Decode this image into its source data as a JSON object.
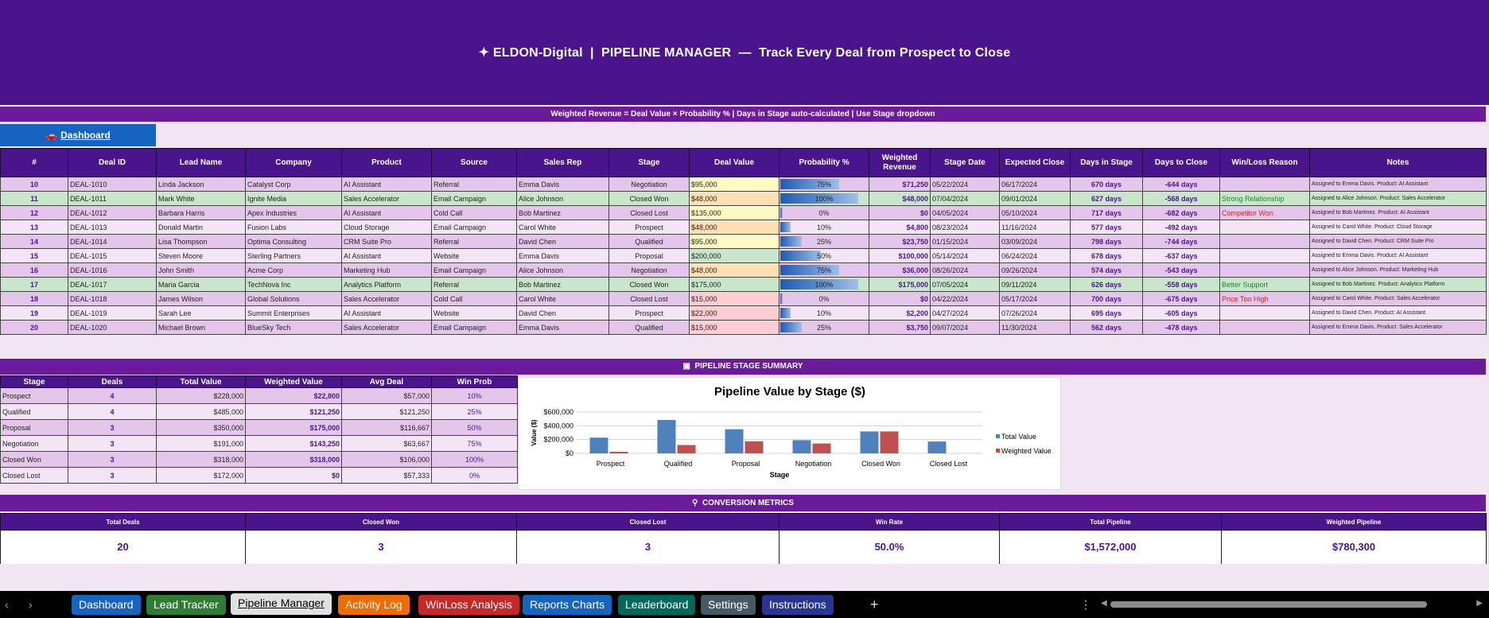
{
  "title": {
    "icon": "✦",
    "text": "ELDON-Digital  |  PIPELINE MANAGER  —  Track Every Deal from Prospect to Close"
  },
  "formula_note": "Weighted Revenue = Deal Value × Probability % | Days in Stage auto-calculated | Use Stage dropdown",
  "dashboard_link": {
    "icon": "car-icon",
    "glyph": "🚗",
    "label": "Dashboard"
  },
  "deals_table": {
    "headers": [
      "#",
      "Deal ID",
      "Lead Name",
      "Company",
      "Product",
      "Source",
      "Sales Rep",
      "Stage",
      "Deal Value",
      "Probability %",
      "Weighted Revenue",
      "Stage Date",
      "Expected Close",
      "Days in Stage",
      "Days to Close",
      "Win/Loss Reason",
      "Notes"
    ],
    "rows": [
      {
        "num": "10",
        "id": "DEAL-1010",
        "lead": "Linda Jackson",
        "company": "Catalyst Corp",
        "product": "AI Assistant",
        "source": "Referral",
        "rep": "Emma Davis",
        "stage": "Negotiation",
        "value": "$95,000",
        "prob": "75%",
        "prob_fraction": 0.75,
        "wrev": "$71,250",
        "stage_date": "05/22/2024",
        "close": "06/17/2024",
        "days": "670 days",
        "dtc": "-644 days",
        "reason": "",
        "notes": "Assigned to Emma Davis. Product: AI Assistant",
        "value_color": "#fff9c4"
      },
      {
        "num": "11",
        "id": "DEAL-1011",
        "lead": "Mark White",
        "company": "Ignite Media",
        "product": "Sales Accelerator",
        "source": "Email Campaign",
        "rep": "Alice Johnson",
        "stage": "Closed Won",
        "value": "$48,000",
        "prob": "100%",
        "prob_fraction": 1.0,
        "wrev": "$48,000",
        "stage_date": "07/04/2024",
        "close": "09/01/2024",
        "days": "627 days",
        "dtc": "-568 days",
        "reason": "Strong Relationship",
        "notes": "Assigned to Alice Johnson. Product: Sales Accelerator",
        "value_color": "#ffe0b2"
      },
      {
        "num": "12",
        "id": "DEAL-1012",
        "lead": "Barbara Harris",
        "company": "Apex Industries",
        "product": "AI Assistant",
        "source": "Cold Call",
        "rep": "Bob Martinez",
        "stage": "Closed Lost",
        "value": "$135,000",
        "prob": "0%",
        "prob_fraction": 0.0,
        "wrev": "$0",
        "stage_date": "04/05/2024",
        "close": "05/10/2024",
        "days": "717 days",
        "dtc": "-682 days",
        "reason": "Competitor Won",
        "notes": "Assigned to Bob Martinez. Product: AI Assistant",
        "value_color": "#fff9c4"
      },
      {
        "num": "13",
        "id": "DEAL-1013",
        "lead": "Donald Martin",
        "company": "Fusion Labs",
        "product": "Cloud Storage",
        "source": "Email Campaign",
        "rep": "Carol White",
        "stage": "Prospect",
        "value": "$48,000",
        "prob": "10%",
        "prob_fraction": 0.1,
        "wrev": "$4,800",
        "stage_date": "08/23/2024",
        "close": "11/16/2024",
        "days": "577 days",
        "dtc": "-492 days",
        "reason": "",
        "notes": "Assigned to Carol White. Product: Cloud Storage",
        "value_color": "#ffe0b2"
      },
      {
        "num": "14",
        "id": "DEAL-1014",
        "lead": "Lisa Thompson",
        "company": "Optima Consulting",
        "product": "CRM Suite Pro",
        "source": "Referral",
        "rep": "David Chen",
        "stage": "Qualified",
        "value": "$95,000",
        "prob": "25%",
        "prob_fraction": 0.25,
        "wrev": "$23,750",
        "stage_date": "01/15/2024",
        "close": "03/09/2024",
        "days": "798 days",
        "dtc": "-744 days",
        "reason": "",
        "notes": "Assigned to David Chen. Product: CRM Suite Pro",
        "value_color": "#fff9c4"
      },
      {
        "num": "15",
        "id": "DEAL-1015",
        "lead": "Steven Moore",
        "company": "Sterling Partners",
        "product": "AI Assistant",
        "source": "Website",
        "rep": "Emma Davis",
        "stage": "Proposal",
        "value": "$200,000",
        "prob": "50%",
        "prob_fraction": 0.5,
        "wrev": "$100,000",
        "stage_date": "05/14/2024",
        "close": "06/24/2024",
        "days": "678 days",
        "dtc": "-637 days",
        "reason": "",
        "notes": "Assigned to Emma Davis. Product: AI Assistant",
        "value_color": "#c8e6c9"
      },
      {
        "num": "16",
        "id": "DEAL-1016",
        "lead": "John Smith",
        "company": "Acme Corp",
        "product": "Marketing Hub",
        "source": "Email Campaign",
        "rep": "Alice Johnson",
        "stage": "Negotiation",
        "value": "$48,000",
        "prob": "75%",
        "prob_fraction": 0.75,
        "wrev": "$36,000",
        "stage_date": "08/26/2024",
        "close": "09/26/2024",
        "days": "574 days",
        "dtc": "-543 days",
        "reason": "",
        "notes": "Assigned to Alice Johnson. Product: Marketing Hub",
        "value_color": "#ffe0b2"
      },
      {
        "num": "17",
        "id": "DEAL-1017",
        "lead": "Maria Garcia",
        "company": "TechNova Inc",
        "product": "Analytics Platform",
        "source": "Referral",
        "rep": "Bob Martinez",
        "stage": "Closed Won",
        "value": "$175,000",
        "prob": "100%",
        "prob_fraction": 1.0,
        "wrev": "$175,000",
        "stage_date": "07/05/2024",
        "close": "09/11/2024",
        "days": "626 days",
        "dtc": "-558 days",
        "reason": "Better Support",
        "notes": "Assigned to Bob Martinez. Product: Analytics Platform",
        "value_color": "#c8e6c9"
      },
      {
        "num": "18",
        "id": "DEAL-1018",
        "lead": "James Wilson",
        "company": "Global Solutions",
        "product": "Sales Accelerator",
        "source": "Cold Call",
        "rep": "Carol White",
        "stage": "Closed Lost",
        "value": "$15,000",
        "prob": "0%",
        "prob_fraction": 0.0,
        "wrev": "$0",
        "stage_date": "04/22/2024",
        "close": "05/17/2024",
        "days": "700 days",
        "dtc": "-675 days",
        "reason": "Price Too High",
        "notes": "Assigned to Carol White. Product: Sales Accelerator",
        "value_color": "#ffcdd2"
      },
      {
        "num": "19",
        "id": "DEAL-1019",
        "lead": "Sarah Lee",
        "company": "Summit Enterprises",
        "product": "AI Assistant",
        "source": "Website",
        "rep": "David Chen",
        "stage": "Prospect",
        "value": "$22,000",
        "prob": "10%",
        "prob_fraction": 0.1,
        "wrev": "$2,200",
        "stage_date": "04/27/2024",
        "close": "07/26/2024",
        "days": "695 days",
        "dtc": "-605 days",
        "reason": "",
        "notes": "Assigned to David Chen. Product: AI Assistant",
        "value_color": "#ffcdd2"
      },
      {
        "num": "20",
        "id": "DEAL-1020",
        "lead": "Michael Brown",
        "company": "BlueSky Tech",
        "product": "Sales Accelerator",
        "source": "Email Campaign",
        "rep": "Emma Davis",
        "stage": "Qualified",
        "value": "$15,000",
        "prob": "25%",
        "prob_fraction": 0.25,
        "wrev": "$3,750",
        "stage_date": "09/07/2024",
        "close": "11/30/2024",
        "days": "562 days",
        "dtc": "-478 days",
        "reason": "",
        "notes": "Assigned to Emma Davis. Product: Sales Accelerator",
        "value_color": "#ffcdd2"
      }
    ]
  },
  "summary_banner": {
    "icon": "chart-icon",
    "glyph": "▣",
    "label": "PIPELINE STAGE SUMMARY"
  },
  "stage_table": {
    "headers": [
      "Stage",
      "Deals",
      "Total Value",
      "Weighted Value",
      "Avg Deal",
      "Win Prob"
    ],
    "rows": [
      {
        "stage": "Prospect",
        "deals": "4",
        "total": "$228,000",
        "weighted": "$22,800",
        "avg": "$57,000",
        "prob": "10%"
      },
      {
        "stage": "Qualified",
        "deals": "4",
        "total": "$485,000",
        "weighted": "$121,250",
        "avg": "$121,250",
        "prob": "25%"
      },
      {
        "stage": "Proposal",
        "deals": "3",
        "total": "$350,000",
        "weighted": "$175,000",
        "avg": "$116,667",
        "prob": "50%"
      },
      {
        "stage": "Negotiation",
        "deals": "3",
        "total": "$191,000",
        "weighted": "$143,250",
        "avg": "$63,667",
        "prob": "75%"
      },
      {
        "stage": "Closed Won",
        "deals": "3",
        "total": "$318,000",
        "weighted": "$318,000",
        "avg": "$106,000",
        "prob": "100%"
      },
      {
        "stage": "Closed Lost",
        "deals": "3",
        "total": "$172,000",
        "weighted": "$0",
        "avg": "$57,333",
        "prob": "0%"
      }
    ]
  },
  "chart_data": {
    "type": "bar",
    "title": "Pipeline Value by Stage ($)",
    "xlabel": "Stage",
    "ylabel": "Value ($)",
    "categories": [
      "Prospect",
      "Qualified",
      "Proposal",
      "Negotiation",
      "Closed Won",
      "Closed Lost"
    ],
    "series": [
      {
        "name": "Total Value",
        "values": [
          228000,
          485000,
          350000,
          191000,
          318000,
          172000
        ],
        "color": "#4f81bd"
      },
      {
        "name": "Weighted Value",
        "values": [
          22800,
          121250,
          175000,
          143250,
          318000,
          0
        ],
        "color": "#c0504d"
      }
    ],
    "ylim": [
      0,
      600000
    ],
    "yticks": [
      "$0",
      "$200,000",
      "$400,000",
      "$600,000"
    ],
    "ytick_values": [
      0,
      200000,
      400000,
      600000
    ],
    "grid": true,
    "legend": "right"
  },
  "conversion_banner": {
    "icon": "pin-icon",
    "glyph": "⚲",
    "label": "CONVERSION METRICS"
  },
  "metrics": [
    {
      "label": "Total Deals",
      "value": "20"
    },
    {
      "label": "Closed Won",
      "value": "3"
    },
    {
      "label": "Closed Lost",
      "value": "3"
    },
    {
      "label": "Win Rate",
      "value": "50.0%"
    },
    {
      "label": "Total Pipeline",
      "value": "$1,572,000"
    },
    {
      "label": "Weighted Pipeline",
      "value": "$780,300"
    }
  ],
  "sheet_tabs": [
    {
      "label": "Dashboard",
      "color": "#1565c0",
      "active": false
    },
    {
      "label": "Lead Tracker",
      "color": "#2e7d32",
      "active": false
    },
    {
      "label": "Pipeline Manager",
      "color": "#e0e0e0",
      "active": true
    },
    {
      "label": "Activity Log",
      "color": "#ef6c00",
      "active": false
    },
    {
      "label": "WinLoss Analysis",
      "color": "#c62828",
      "active": false
    },
    {
      "label": "Reports Charts",
      "color": "#1565c0",
      "active": false
    },
    {
      "label": "Leaderboard",
      "color": "#00695c",
      "active": false
    },
    {
      "label": "Settings",
      "color": "#455a64",
      "active": false
    },
    {
      "label": "Instructions",
      "color": "#283593",
      "active": false
    }
  ],
  "tabbar": {
    "prev": "‹",
    "next": "›",
    "add": "+",
    "more": "⋮"
  }
}
